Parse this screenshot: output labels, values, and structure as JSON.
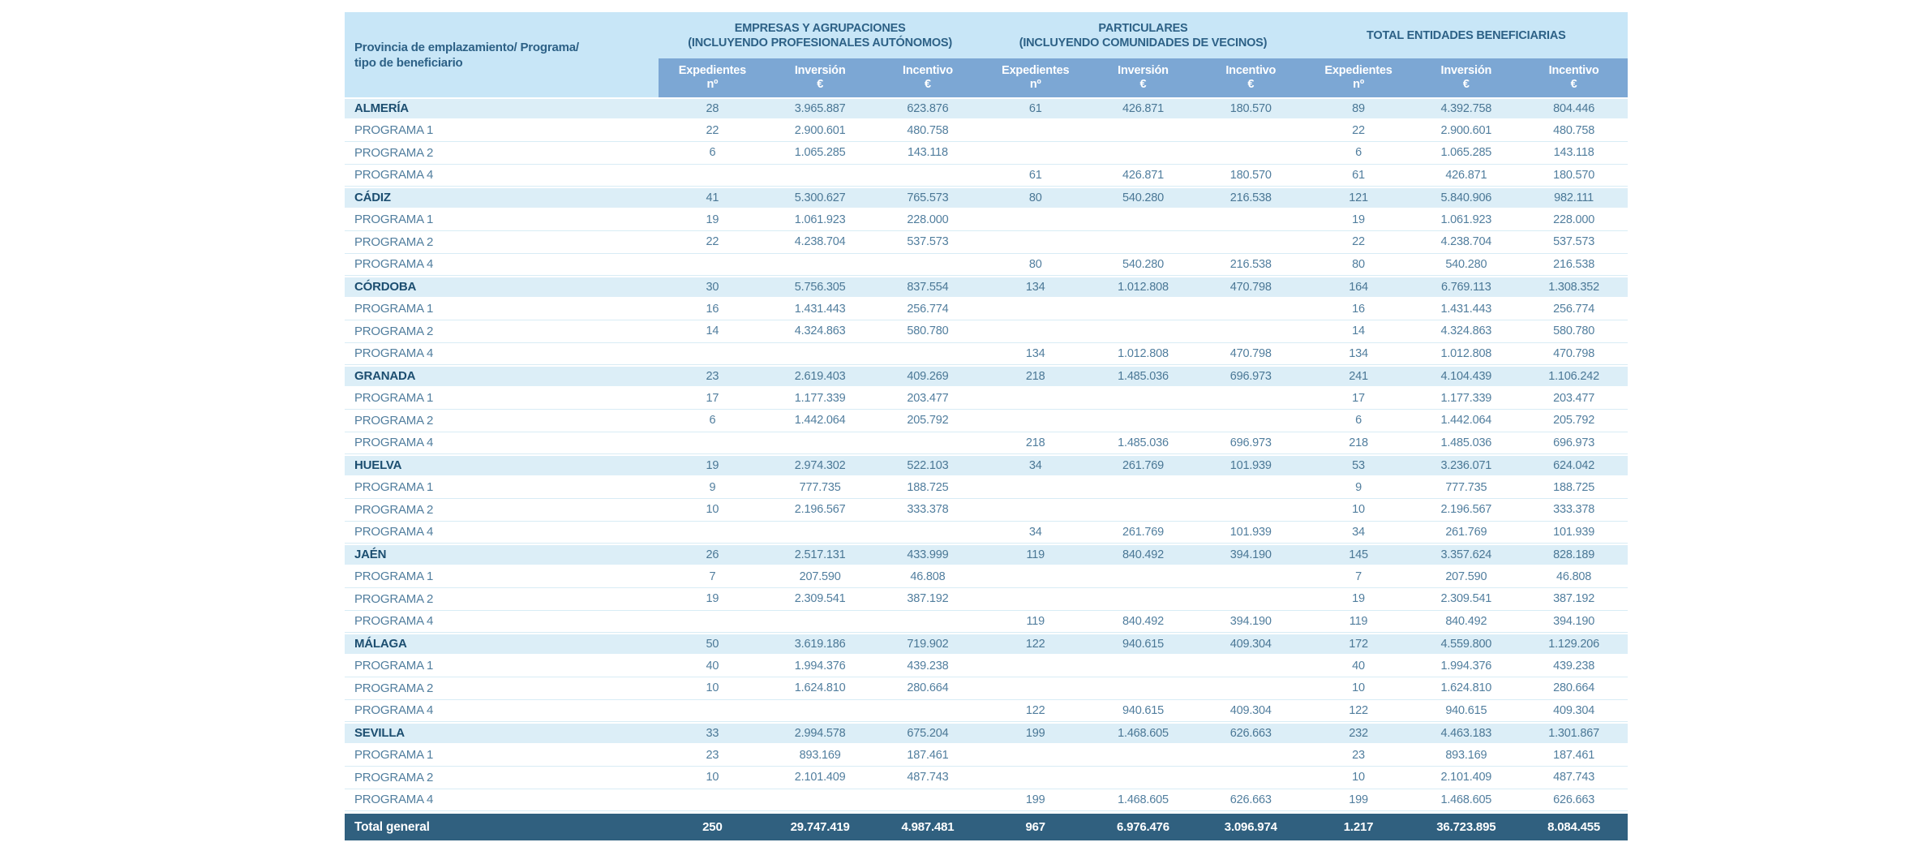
{
  "table": {
    "corner": {
      "line1": "Provincia de emplazamiento/ Programa/",
      "line2": "tipo de beneficiario"
    },
    "groups": [
      {
        "line1": "EMPRESAS Y AGRUPACIONES",
        "line2": "(INCLUYENDO PROFESIONALES AUTÓNOMOS)"
      },
      {
        "line1": "PARTICULARES",
        "line2": "(INCLUYENDO COMUNIDADES DE VECINOS)"
      },
      {
        "line1": "TOTAL ENTIDADES BENEFICIARIAS",
        "line2": ""
      }
    ],
    "sub_columns": [
      {
        "top": "Expedientes",
        "bottom": "nº"
      },
      {
        "top": "Inversión",
        "bottom": "€"
      },
      {
        "top": "Incentivo",
        "bottom": "€"
      }
    ],
    "rows": [
      {
        "type": "province",
        "label": "ALMERÍA",
        "values": [
          "28",
          "3.965.887",
          "623.876",
          "61",
          "426.871",
          "180.570",
          "89",
          "4.392.758",
          "804.446"
        ]
      },
      {
        "type": "program",
        "label": "PROGRAMA 1",
        "values": [
          "22",
          "2.900.601",
          "480.758",
          "",
          "",
          "",
          "22",
          "2.900.601",
          "480.758"
        ]
      },
      {
        "type": "program",
        "label": "PROGRAMA 2",
        "values": [
          "6",
          "1.065.285",
          "143.118",
          "",
          "",
          "",
          "6",
          "1.065.285",
          "143.118"
        ]
      },
      {
        "type": "program",
        "label": "PROGRAMA 4",
        "values": [
          "",
          "",
          "",
          "61",
          "426.871",
          "180.570",
          "61",
          "426.871",
          "180.570"
        ]
      },
      {
        "type": "province",
        "label": "CÁDIZ",
        "values": [
          "41",
          "5.300.627",
          "765.573",
          "80",
          "540.280",
          "216.538",
          "121",
          "5.840.906",
          "982.111"
        ]
      },
      {
        "type": "program",
        "label": "PROGRAMA 1",
        "values": [
          "19",
          "1.061.923",
          "228.000",
          "",
          "",
          "",
          "19",
          "1.061.923",
          "228.000"
        ]
      },
      {
        "type": "program",
        "label": "PROGRAMA 2",
        "values": [
          "22",
          "4.238.704",
          "537.573",
          "",
          "",
          "",
          "22",
          "4.238.704",
          "537.573"
        ]
      },
      {
        "type": "program",
        "label": "PROGRAMA 4",
        "values": [
          "",
          "",
          "",
          "80",
          "540.280",
          "216.538",
          "80",
          "540.280",
          "216.538"
        ]
      },
      {
        "type": "province",
        "label": "CÓRDOBA",
        "values": [
          "30",
          "5.756.305",
          "837.554",
          "134",
          "1.012.808",
          "470.798",
          "164",
          "6.769.113",
          "1.308.352"
        ]
      },
      {
        "type": "program",
        "label": "PROGRAMA 1",
        "values": [
          "16",
          "1.431.443",
          "256.774",
          "",
          "",
          "",
          "16",
          "1.431.443",
          "256.774"
        ]
      },
      {
        "type": "program",
        "label": "PROGRAMA 2",
        "values": [
          "14",
          "4.324.863",
          "580.780",
          "",
          "",
          "",
          "14",
          "4.324.863",
          "580.780"
        ]
      },
      {
        "type": "program",
        "label": "PROGRAMA 4",
        "values": [
          "",
          "",
          "",
          "134",
          "1.012.808",
          "470.798",
          "134",
          "1.012.808",
          "470.798"
        ]
      },
      {
        "type": "province",
        "label": "GRANADA",
        "values": [
          "23",
          "2.619.403",
          "409.269",
          "218",
          "1.485.036",
          "696.973",
          "241",
          "4.104.439",
          "1.106.242"
        ]
      },
      {
        "type": "program",
        "label": "PROGRAMA 1",
        "values": [
          "17",
          "1.177.339",
          "203.477",
          "",
          "",
          "",
          "17",
          "1.177.339",
          "203.477"
        ]
      },
      {
        "type": "program",
        "label": "PROGRAMA 2",
        "values": [
          "6",
          "1.442.064",
          "205.792",
          "",
          "",
          "",
          "6",
          "1.442.064",
          "205.792"
        ]
      },
      {
        "type": "program",
        "label": "PROGRAMA 4",
        "values": [
          "",
          "",
          "",
          "218",
          "1.485.036",
          "696.973",
          "218",
          "1.485.036",
          "696.973"
        ]
      },
      {
        "type": "province",
        "label": "HUELVA",
        "values": [
          "19",
          "2.974.302",
          "522.103",
          "34",
          "261.769",
          "101.939",
          "53",
          "3.236.071",
          "624.042"
        ]
      },
      {
        "type": "program",
        "label": "PROGRAMA 1",
        "values": [
          "9",
          "777.735",
          "188.725",
          "",
          "",
          "",
          "9",
          "777.735",
          "188.725"
        ]
      },
      {
        "type": "program",
        "label": "PROGRAMA 2",
        "values": [
          "10",
          "2.196.567",
          "333.378",
          "",
          "",
          "",
          "10",
          "2.196.567",
          "333.378"
        ]
      },
      {
        "type": "program",
        "label": "PROGRAMA 4",
        "values": [
          "",
          "",
          "",
          "34",
          "261.769",
          "101.939",
          "34",
          "261.769",
          "101.939"
        ]
      },
      {
        "type": "province",
        "label": "JAÉN",
        "values": [
          "26",
          "2.517.131",
          "433.999",
          "119",
          "840.492",
          "394.190",
          "145",
          "3.357.624",
          "828.189"
        ]
      },
      {
        "type": "program",
        "label": "PROGRAMA 1",
        "values": [
          "7",
          "207.590",
          "46.808",
          "",
          "",
          "",
          "7",
          "207.590",
          "46.808"
        ]
      },
      {
        "type": "program",
        "label": "PROGRAMA 2",
        "values": [
          "19",
          "2.309.541",
          "387.192",
          "",
          "",
          "",
          "19",
          "2.309.541",
          "387.192"
        ]
      },
      {
        "type": "program",
        "label": "PROGRAMA 4",
        "values": [
          "",
          "",
          "",
          "119",
          "840.492",
          "394.190",
          "119",
          "840.492",
          "394.190"
        ]
      },
      {
        "type": "province",
        "label": "MÁLAGA",
        "values": [
          "50",
          "3.619.186",
          "719.902",
          "122",
          "940.615",
          "409.304",
          "172",
          "4.559.800",
          "1.129.206"
        ]
      },
      {
        "type": "program",
        "label": "PROGRAMA 1",
        "values": [
          "40",
          "1.994.376",
          "439.238",
          "",
          "",
          "",
          "40",
          "1.994.376",
          "439.238"
        ]
      },
      {
        "type": "program",
        "label": "PROGRAMA 2",
        "values": [
          "10",
          "1.624.810",
          "280.664",
          "",
          "",
          "",
          "10",
          "1.624.810",
          "280.664"
        ]
      },
      {
        "type": "program",
        "label": "PROGRAMA 4",
        "values": [
          "",
          "",
          "",
          "122",
          "940.615",
          "409.304",
          "122",
          "940.615",
          "409.304"
        ]
      },
      {
        "type": "province",
        "label": "SEVILLA",
        "values": [
          "33",
          "2.994.578",
          "675.204",
          "199",
          "1.468.605",
          "626.663",
          "232",
          "4.463.183",
          "1.301.867"
        ]
      },
      {
        "type": "program",
        "label": "PROGRAMA 1",
        "values": [
          "23",
          "893.169",
          "187.461",
          "",
          "",
          "",
          "23",
          "893.169",
          "187.461"
        ]
      },
      {
        "type": "program",
        "label": "PROGRAMA 2",
        "values": [
          "10",
          "2.101.409",
          "487.743",
          "",
          "",
          "",
          "10",
          "2.101.409",
          "487.743"
        ]
      },
      {
        "type": "program",
        "label": "PROGRAMA 4",
        "values": [
          "",
          "",
          "",
          "199",
          "1.468.605",
          "626.663",
          "199",
          "1.468.605",
          "626.663"
        ]
      }
    ],
    "total": {
      "label": "Total general",
      "values": [
        "250",
        "29.747.419",
        "4.987.481",
        "967",
        "6.976.476",
        "3.096.974",
        "1.217",
        "36.723.895",
        "8.084.455"
      ]
    }
  },
  "colors": {
    "header_bg": "#c8e6f7",
    "subheader_bg": "#7ca7d4",
    "province_row_bg": "#dceef7",
    "total_row_bg": "#30607f",
    "header_text": "#2d6186",
    "province_text": "#1c4e70",
    "number_text": "#517e9e",
    "row_line": "#d8ecf5"
  }
}
